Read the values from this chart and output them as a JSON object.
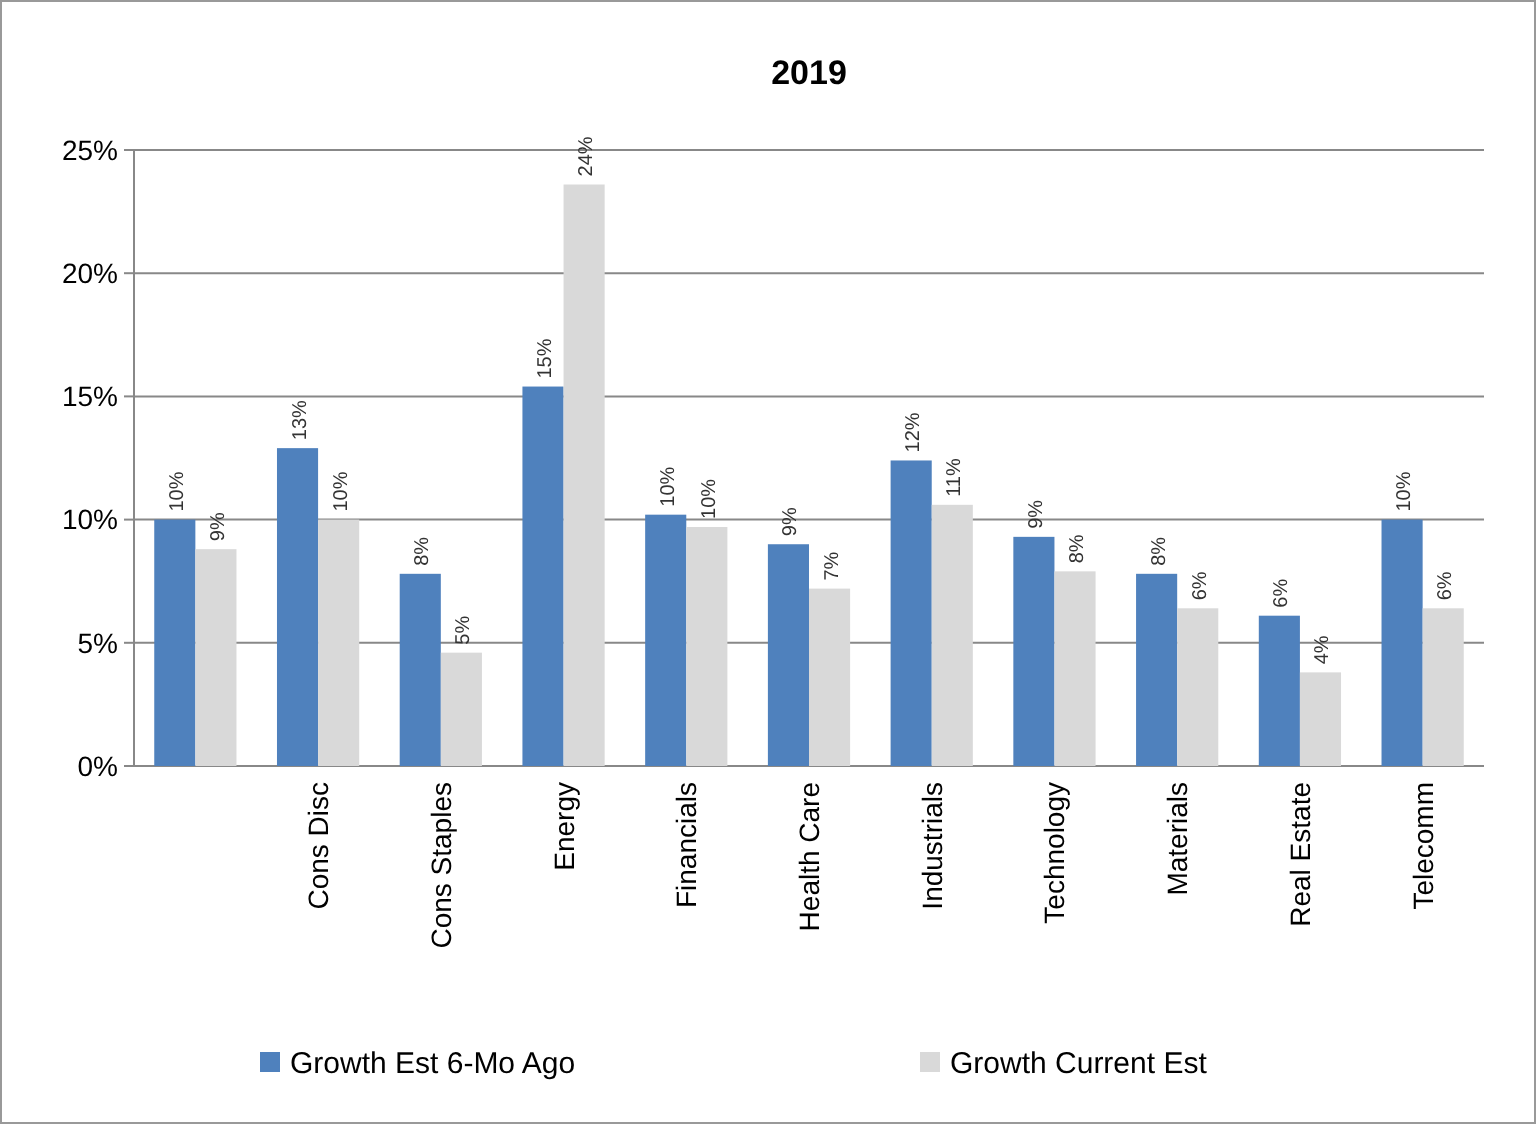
{
  "chart_data": {
    "type": "bar",
    "title": "2019",
    "categories": [
      null,
      "Cons Disc",
      "Cons Staples",
      "Energy",
      "Financials",
      "Health Care",
      "Industrials",
      "Technology",
      "Materials",
      "Real Estate",
      "Telecomm"
    ],
    "series": [
      {
        "name": "Growth Est 6-Mo Ago",
        "color": "#4f81bd",
        "values": [
          10.0,
          12.9,
          7.8,
          15.4,
          10.2,
          9.0,
          12.4,
          9.3,
          7.8,
          6.1,
          10.0
        ],
        "value_labels": [
          "10%",
          "13%",
          "8%",
          "15%",
          "10%",
          "9%",
          "12%",
          "9%",
          "8%",
          "6%",
          "10%"
        ]
      },
      {
        "name": "Growth Current Est",
        "color": "#d9d9d9",
        "values": [
          8.8,
          10.0,
          4.6,
          23.6,
          9.7,
          7.2,
          10.6,
          7.9,
          6.4,
          3.8,
          6.4
        ],
        "value_labels": [
          "9%",
          "10%",
          "5%",
          "24%",
          "10%",
          "7%",
          "11%",
          "8%",
          "6%",
          "4%",
          "6%"
        ]
      }
    ],
    "ylim": [
      0,
      25
    ],
    "yticks": [
      {
        "value": 0,
        "label": "0%"
      },
      {
        "value": 5,
        "label": "5%"
      },
      {
        "value": 10,
        "label": "10%"
      },
      {
        "value": 15,
        "label": "15%"
      },
      {
        "value": 20,
        "label": "20%"
      },
      {
        "value": 25,
        "label": "25%"
      }
    ],
    "grid": "y",
    "legend": "bottom"
  }
}
